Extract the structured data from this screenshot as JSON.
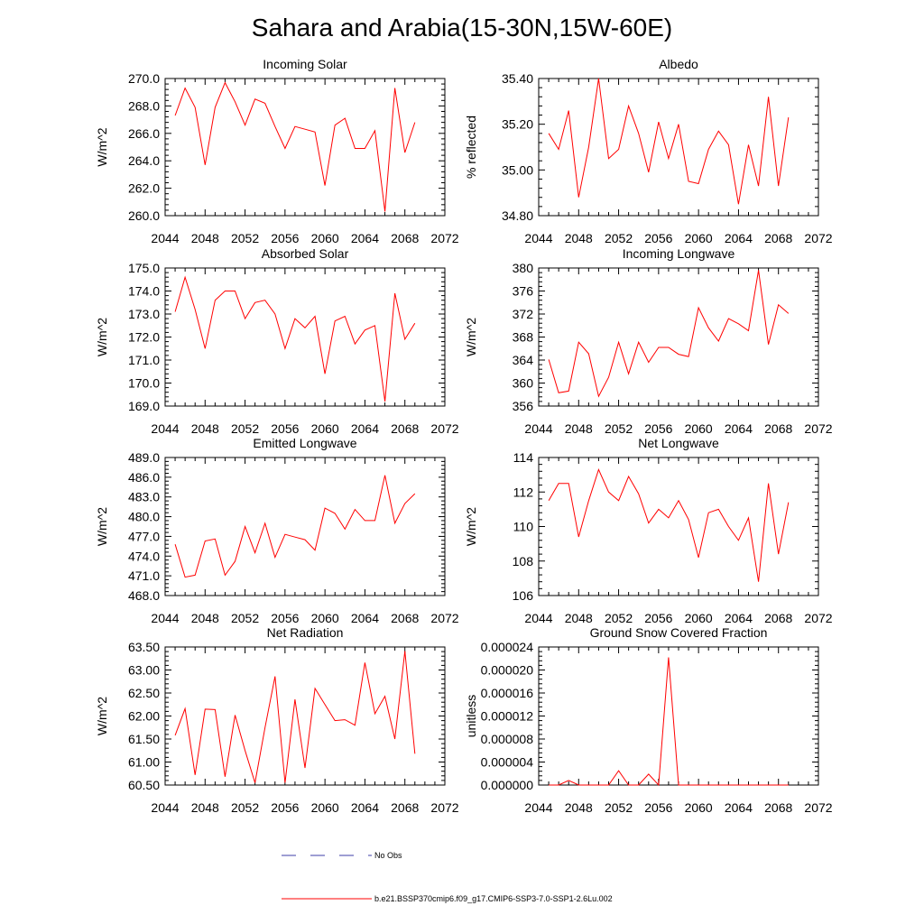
{
  "title": "Sahara and Arabia(15-30N,15W-60E)",
  "colors": {
    "model": "#ff0000",
    "obs": "#3d3da8",
    "axis": "#000000"
  },
  "legend": {
    "obs_label": "No Obs",
    "model_label": "b.e21.BSSP370cmip6.f09_g17.CMIP6-SSP3-7.0-SSP1-2.6Lu.002"
  },
  "chart_data": [
    {
      "type": "line",
      "title": "Incoming Solar",
      "ylabel": "W/m^2",
      "xlim": [
        2044,
        2072
      ],
      "ylim": [
        260,
        270
      ],
      "x_ticks": [
        2044,
        2048,
        2052,
        2056,
        2060,
        2064,
        2068,
        2072
      ],
      "y_ticks": [
        "260.0",
        "262.0",
        "264.0",
        "266.0",
        "268.0",
        "270.0"
      ],
      "x": [
        2045,
        2046,
        2047,
        2048,
        2049,
        2050,
        2051,
        2052,
        2053,
        2054,
        2055,
        2056,
        2057,
        2058,
        2059,
        2060,
        2061,
        2062,
        2063,
        2064,
        2065,
        2066,
        2067,
        2068,
        2069
      ],
      "values": [
        267.3,
        269.3,
        267.9,
        263.7,
        267.9,
        269.7,
        268.3,
        266.6,
        268.5,
        268.2,
        266.5,
        264.9,
        266.5,
        266.3,
        266.1,
        262.2,
        266.6,
        267.1,
        264.9,
        264.9,
        266.2,
        260.3,
        269.3,
        264.6,
        266.8
      ]
    },
    {
      "type": "line",
      "title": "Albedo",
      "ylabel": "% reflected",
      "xlim": [
        2044,
        2072
      ],
      "ylim": [
        34.8,
        35.4
      ],
      "x_ticks": [
        2044,
        2048,
        2052,
        2056,
        2060,
        2064,
        2068,
        2072
      ],
      "y_ticks": [
        "34.80",
        "35.00",
        "35.20",
        "35.40"
      ],
      "x": [
        2045,
        2046,
        2047,
        2048,
        2049,
        2050,
        2051,
        2052,
        2053,
        2054,
        2055,
        2056,
        2057,
        2058,
        2059,
        2060,
        2061,
        2062,
        2063,
        2064,
        2065,
        2066,
        2067,
        2068,
        2069
      ],
      "values": [
        35.16,
        35.09,
        35.26,
        34.88,
        35.1,
        35.4,
        35.05,
        35.09,
        35.28,
        35.16,
        34.99,
        35.21,
        35.05,
        35.2,
        34.95,
        34.94,
        35.09,
        35.17,
        35.11,
        34.85,
        35.11,
        34.93,
        35.32,
        34.93,
        35.23
      ]
    },
    {
      "type": "line",
      "title": "Absorbed Solar",
      "ylabel": "W/m^2",
      "xlim": [
        2044,
        2072
      ],
      "ylim": [
        169,
        175
      ],
      "x_ticks": [
        2044,
        2048,
        2052,
        2056,
        2060,
        2064,
        2068,
        2072
      ],
      "y_ticks": [
        "169.0",
        "170.0",
        "171.0",
        "172.0",
        "173.0",
        "174.0",
        "175.0"
      ],
      "x": [
        2045,
        2046,
        2047,
        2048,
        2049,
        2050,
        2051,
        2052,
        2053,
        2054,
        2055,
        2056,
        2057,
        2058,
        2059,
        2060,
        2061,
        2062,
        2063,
        2064,
        2065,
        2066,
        2067,
        2068,
        2069
      ],
      "values": [
        173.1,
        174.6,
        173.2,
        171.5,
        173.6,
        174.0,
        174.0,
        172.8,
        173.5,
        173.6,
        173.0,
        171.5,
        172.8,
        172.4,
        172.9,
        170.4,
        172.7,
        172.9,
        171.7,
        172.3,
        172.5,
        169.2,
        173.9,
        171.9,
        172.6
      ]
    },
    {
      "type": "line",
      "title": "Incoming Longwave",
      "ylabel": "W/m^2",
      "xlim": [
        2044,
        2072
      ],
      "ylim": [
        356,
        380
      ],
      "x_ticks": [
        2044,
        2048,
        2052,
        2056,
        2060,
        2064,
        2068,
        2072
      ],
      "y_ticks": [
        "356",
        "360",
        "364",
        "368",
        "372",
        "376",
        "380"
      ],
      "x": [
        2045,
        2046,
        2047,
        2048,
        2049,
        2050,
        2051,
        2052,
        2053,
        2054,
        2055,
        2056,
        2057,
        2058,
        2059,
        2060,
        2061,
        2062,
        2063,
        2064,
        2065,
        2066,
        2067,
        2068,
        2069
      ],
      "values": [
        364.1,
        358.3,
        358.6,
        367.1,
        365.1,
        357.7,
        361.0,
        367.1,
        361.6,
        367.1,
        363.6,
        366.2,
        366.2,
        365.0,
        364.6,
        373.1,
        369.6,
        367.3,
        371.2,
        370.3,
        369.1,
        379.6,
        366.7,
        373.6,
        372.1
      ]
    },
    {
      "type": "line",
      "title": "Emitted Longwave",
      "ylabel": "W/m^2",
      "xlim": [
        2044,
        2072
      ],
      "ylim": [
        468,
        489
      ],
      "x_ticks": [
        2044,
        2048,
        2052,
        2056,
        2060,
        2064,
        2068,
        2072
      ],
      "y_ticks": [
        "468.0",
        "471.0",
        "474.0",
        "477.0",
        "480.0",
        "483.0",
        "486.0",
        "489.0"
      ],
      "x": [
        2045,
        2046,
        2047,
        2048,
        2049,
        2050,
        2051,
        2052,
        2053,
        2054,
        2055,
        2056,
        2057,
        2058,
        2059,
        2060,
        2061,
        2062,
        2063,
        2064,
        2065,
        2066,
        2067,
        2068,
        2069
      ],
      "values": [
        475.8,
        470.8,
        471.1,
        476.3,
        476.6,
        471.1,
        473.2,
        478.5,
        474.5,
        479.0,
        473.8,
        477.3,
        476.9,
        476.5,
        474.9,
        481.3,
        480.5,
        478.1,
        481.1,
        479.4,
        479.4,
        486.3,
        479.0,
        482.0,
        483.5
      ]
    },
    {
      "type": "line",
      "title": "Net Longwave",
      "ylabel": "W/m^2",
      "xlim": [
        2044,
        2072
      ],
      "ylim": [
        106,
        114
      ],
      "x_ticks": [
        2044,
        2048,
        2052,
        2056,
        2060,
        2064,
        2068,
        2072
      ],
      "y_ticks": [
        "106",
        "108",
        "110",
        "112",
        "114"
      ],
      "x": [
        2045,
        2046,
        2047,
        2048,
        2049,
        2050,
        2051,
        2052,
        2053,
        2054,
        2055,
        2056,
        2057,
        2058,
        2059,
        2060,
        2061,
        2062,
        2063,
        2064,
        2065,
        2066,
        2067,
        2068,
        2069
      ],
      "values": [
        111.5,
        112.5,
        112.5,
        109.4,
        111.5,
        113.3,
        112.0,
        111.5,
        112.9,
        111.9,
        110.2,
        111.0,
        110.5,
        111.5,
        110.4,
        108.2,
        110.8,
        111.0,
        110.0,
        109.2,
        110.5,
        106.8,
        112.5,
        108.4,
        111.4
      ]
    },
    {
      "type": "line",
      "title": "Net Radiation",
      "ylabel": "W/m^2",
      "xlim": [
        2044,
        2072
      ],
      "ylim": [
        60.5,
        63.5
      ],
      "x_ticks": [
        2044,
        2048,
        2052,
        2056,
        2060,
        2064,
        2068,
        2072
      ],
      "y_ticks": [
        "60.50",
        "61.00",
        "61.50",
        "62.00",
        "62.50",
        "63.00",
        "63.50"
      ],
      "x": [
        2045,
        2046,
        2047,
        2048,
        2049,
        2050,
        2051,
        2052,
        2053,
        2054,
        2055,
        2056,
        2057,
        2058,
        2059,
        2060,
        2061,
        2062,
        2063,
        2064,
        2065,
        2066,
        2067,
        2068,
        2069
      ],
      "values": [
        61.58,
        62.16,
        60.72,
        62.15,
        62.14,
        60.68,
        62.02,
        61.25,
        60.55,
        61.75,
        62.86,
        60.55,
        62.36,
        60.87,
        62.6,
        62.25,
        61.9,
        61.92,
        61.8,
        63.16,
        62.05,
        62.43,
        61.5,
        63.41,
        61.18
      ]
    },
    {
      "type": "line",
      "title": "Ground Snow Covered Fraction",
      "ylabel": "unitless",
      "xlim": [
        2044,
        2072
      ],
      "ylim": [
        0,
        2.4e-05
      ],
      "x_ticks": [
        2044,
        2048,
        2052,
        2056,
        2060,
        2064,
        2068,
        2072
      ],
      "y_ticks": [
        "0.000000",
        "0.000004",
        "0.000008",
        "0.000012",
        "0.000016",
        "0.000020",
        "0.000024"
      ],
      "x": [
        2045,
        2046,
        2047,
        2048,
        2049,
        2050,
        2051,
        2052,
        2053,
        2054,
        2055,
        2056,
        2057,
        2058,
        2059,
        2060,
        2061,
        2062,
        2063,
        2064,
        2065,
        2066,
        2067,
        2068,
        2069
      ],
      "values": [
        0,
        0,
        8e-07,
        0,
        0,
        0,
        0,
        2.5e-06,
        0,
        0,
        1.9e-06,
        0,
        2.22e-05,
        0,
        0,
        0,
        0,
        0,
        0,
        0,
        0,
        0,
        0,
        0,
        0
      ]
    }
  ]
}
